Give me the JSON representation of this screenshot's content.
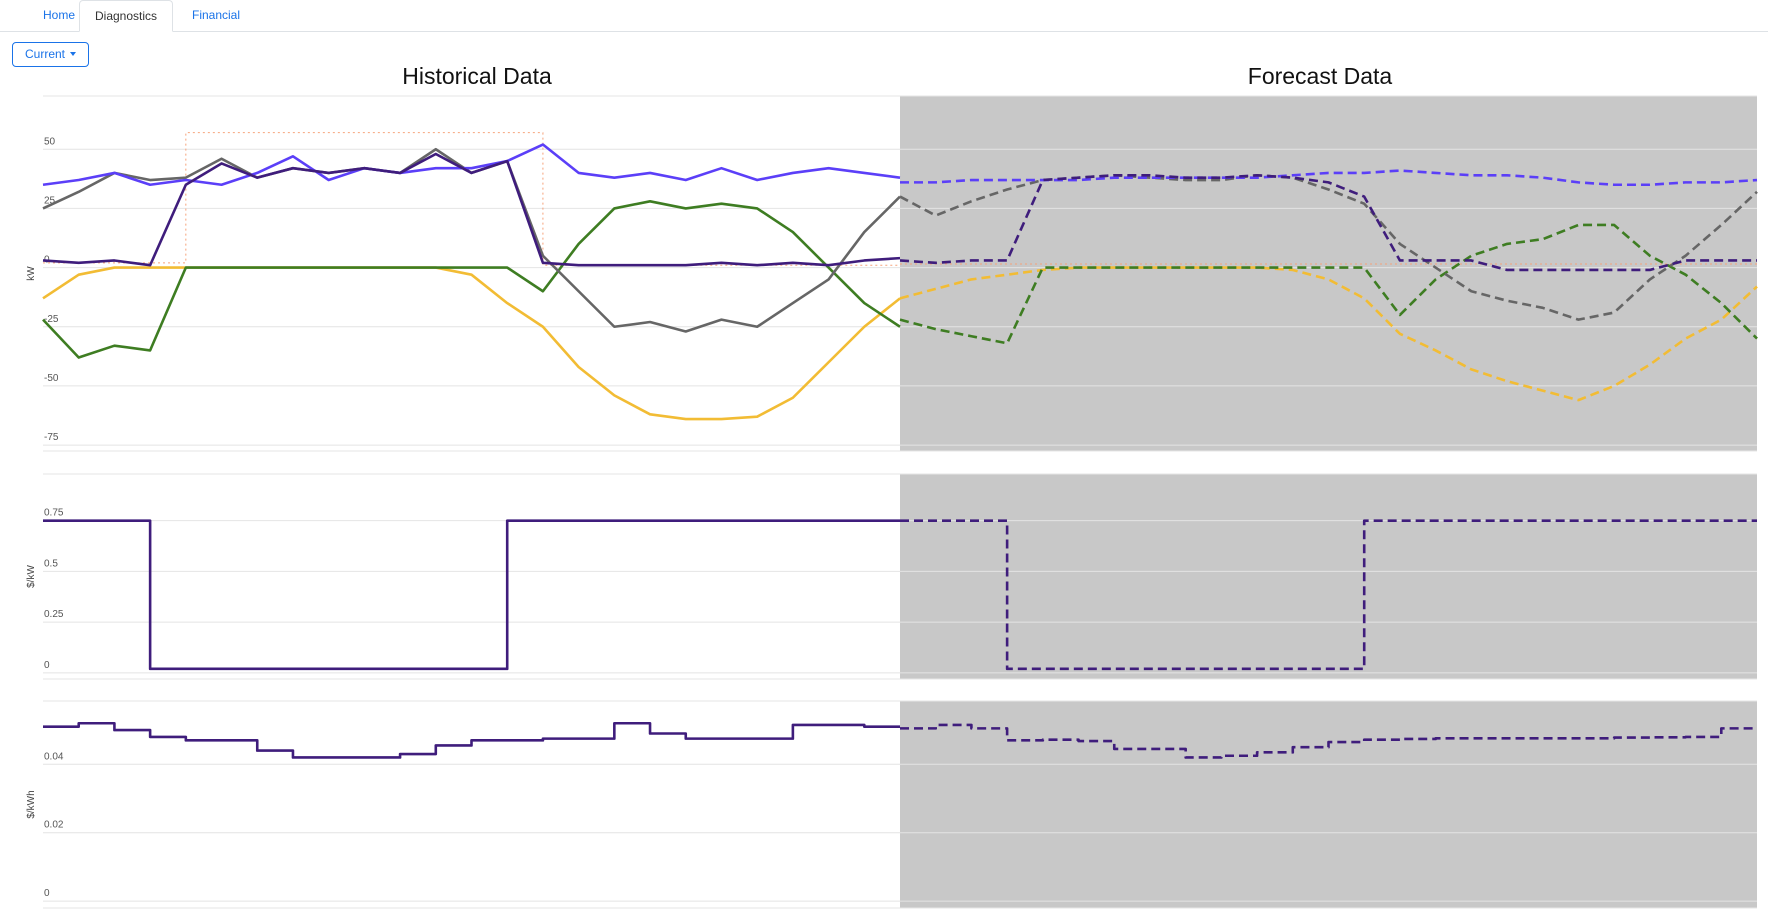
{
  "tabs": [
    "Home",
    "Diagnostics",
    "Financial"
  ],
  "button": "Current",
  "panel_titles": [
    "Historical Data",
    "Forecast Data"
  ],
  "chart_data": [
    {
      "type": "line",
      "y_label": "kW",
      "ylim": [
        -77.5,
        72.5
      ],
      "yticks": [
        -75,
        -50,
        -25,
        0,
        25,
        50
      ],
      "grid": true,
      "categories": [
        null,
        null,
        null,
        null,
        null,
        null,
        null,
        null,
        null,
        null,
        null,
        null,
        null,
        null,
        null,
        null,
        null,
        null,
        null,
        null,
        null,
        null,
        null,
        null,
        null,
        null,
        null,
        null,
        null,
        null,
        null,
        null,
        null,
        null,
        null,
        null,
        null,
        null,
        null,
        null,
        null,
        null,
        null,
        null,
        null,
        null,
        null,
        null,
        null
      ],
      "series": [
        {
          "color": "#f6a27a",
          "line_style": "dotted",
          "step": true,
          "values": [
            2,
            2,
            2,
            2,
            57,
            57,
            57,
            57,
            57,
            57,
            57,
            57,
            57,
            57,
            1,
            1,
            1,
            1,
            1,
            1,
            1,
            1,
            1,
            1,
            1,
            null,
            null,
            null,
            null,
            null,
            null,
            null,
            null,
            null,
            null,
            null,
            null,
            null,
            null,
            null,
            null,
            null,
            null,
            null,
            null,
            null,
            null,
            null,
            null
          ]
        },
        {
          "color": "#f6a27a",
          "line_style": "dotted",
          "step": true,
          "values": [
            null,
            null,
            null,
            null,
            null,
            null,
            null,
            null,
            null,
            null,
            null,
            null,
            null,
            null,
            null,
            null,
            null,
            null,
            null,
            null,
            null,
            null,
            null,
            null,
            1.5,
            1.5,
            1.5,
            1.5,
            1.5,
            1.5,
            1.5,
            1.5,
            1.5,
            1.5,
            1.5,
            1.5,
            1.5,
            1.5,
            1.5,
            1.5,
            1.5,
            1.5,
            1.5,
            1.5,
            1.5,
            1.5,
            1.5,
            1.5,
            1.5
          ]
        },
        {
          "color": "#f2bc34",
          "line_style": "solid",
          "values": [
            -13,
            -3,
            0,
            0,
            0,
            0,
            0,
            0,
            0,
            0,
            0,
            0,
            -3,
            -15,
            -25,
            -42,
            -54,
            -62,
            -64,
            -64,
            -63,
            -55,
            -40,
            -25,
            -13,
            null,
            null,
            null,
            null,
            null,
            null,
            null,
            null,
            null,
            null,
            null,
            null,
            null,
            null,
            null,
            null,
            null,
            null,
            null,
            null,
            null,
            null,
            null,
            null
          ]
        },
        {
          "color": "#f2bc34",
          "line_style": "dashed",
          "values": [
            null,
            null,
            null,
            null,
            null,
            null,
            null,
            null,
            null,
            null,
            null,
            null,
            null,
            null,
            null,
            null,
            null,
            null,
            null,
            null,
            null,
            null,
            null,
            null,
            -13,
            -9,
            -5,
            -3,
            -1,
            0,
            0,
            0,
            0,
            0,
            0,
            -1,
            -5,
            -13,
            -28,
            -35,
            -43,
            -48,
            -52,
            -56,
            -50,
            -41,
            -30,
            -22,
            -8
          ]
        },
        {
          "color": "#3e7d22",
          "line_style": "solid",
          "values": [
            -22,
            -38,
            -33,
            -35,
            0,
            0,
            0,
            0,
            0,
            0,
            0,
            0,
            0,
            0,
            -10,
            10,
            25,
            28,
            25,
            27,
            25,
            15,
            0,
            -15,
            -25,
            null,
            null,
            null,
            null,
            null,
            null,
            null,
            null,
            null,
            null,
            null,
            null,
            null,
            null,
            null,
            null,
            null,
            null,
            null,
            null,
            null,
            null,
            null,
            null
          ]
        },
        {
          "color": "#3e7d22",
          "line_style": "dashed",
          "values": [
            null,
            null,
            null,
            null,
            null,
            null,
            null,
            null,
            null,
            null,
            null,
            null,
            null,
            null,
            null,
            null,
            null,
            null,
            null,
            null,
            null,
            null,
            null,
            null,
            -22,
            -26,
            -29,
            -32,
            0,
            0,
            0,
            0,
            0,
            0,
            0,
            0,
            0,
            0,
            -20,
            -5,
            5,
            10,
            12,
            18,
            18,
            5,
            -3,
            -15,
            -30
          ]
        },
        {
          "color": "#666666",
          "line_style": "solid",
          "values": [
            25,
            32,
            40,
            37,
            38,
            46,
            38,
            42,
            40,
            42,
            40,
            50,
            40,
            45,
            5,
            -10,
            -25,
            -23,
            -27,
            -22,
            -25,
            -15,
            -5,
            15,
            30,
            null,
            null,
            null,
            null,
            null,
            null,
            null,
            null,
            null,
            null,
            null,
            null,
            null,
            null,
            null,
            null,
            null,
            null,
            null,
            null,
            null,
            null,
            null,
            null
          ]
        },
        {
          "color": "#666666",
          "line_style": "dashed",
          "values": [
            null,
            null,
            null,
            null,
            null,
            null,
            null,
            null,
            null,
            null,
            null,
            null,
            null,
            null,
            null,
            null,
            null,
            null,
            null,
            null,
            null,
            null,
            null,
            null,
            30,
            22,
            28,
            33,
            37,
            38,
            39,
            38,
            37,
            37,
            39,
            38,
            33,
            27,
            10,
            0,
            -10,
            -14,
            -17,
            -22,
            -19,
            -5,
            5,
            18,
            32
          ]
        },
        {
          "color": "#5b3ff8",
          "line_style": "solid",
          "values": [
            35,
            37,
            40,
            35,
            37,
            35,
            40,
            47,
            37,
            42,
            40,
            42,
            42,
            45,
            52,
            40,
            38,
            40,
            37,
            42,
            37,
            40,
            42,
            40,
            38,
            null,
            null,
            null,
            null,
            null,
            null,
            null,
            null,
            null,
            null,
            null,
            null,
            null,
            null,
            null,
            null,
            null,
            null,
            null,
            null,
            null,
            null,
            null,
            null
          ]
        },
        {
          "color": "#5b3ff8",
          "line_style": "dashed",
          "values": [
            null,
            null,
            null,
            null,
            null,
            null,
            null,
            null,
            null,
            null,
            null,
            null,
            null,
            null,
            null,
            null,
            null,
            null,
            null,
            null,
            null,
            null,
            null,
            null,
            36,
            36,
            37,
            37,
            37,
            37,
            38,
            38,
            38,
            38,
            38,
            39,
            40,
            40,
            41,
            40,
            39,
            39,
            38,
            36,
            35,
            35,
            36,
            36,
            37
          ]
        },
        {
          "color": "#3f1d7c",
          "line_style": "solid",
          "values": [
            3,
            2,
            3,
            1,
            35,
            44,
            38,
            42,
            40,
            42,
            40,
            48,
            40,
            45,
            2,
            1,
            1,
            1,
            1,
            2,
            1,
            2,
            1,
            3,
            4,
            null,
            null,
            null,
            null,
            null,
            null,
            null,
            null,
            null,
            null,
            null,
            null,
            null,
            null,
            null,
            null,
            null,
            null,
            null,
            null,
            null,
            null,
            null,
            null
          ]
        },
        {
          "color": "#3f1d7c",
          "line_style": "dashed",
          "values": [
            null,
            null,
            null,
            null,
            null,
            null,
            null,
            null,
            null,
            null,
            null,
            null,
            null,
            null,
            null,
            null,
            null,
            null,
            null,
            null,
            null,
            null,
            null,
            null,
            3,
            2,
            3,
            3,
            37,
            38,
            39,
            39,
            38,
            38,
            39,
            38,
            36,
            30,
            3,
            3,
            3,
            -1,
            -1,
            -1,
            -1,
            -1,
            3,
            3,
            3
          ]
        }
      ]
    },
    {
      "type": "line",
      "y_label": "$/kW",
      "ylim": [
        -0.03,
        0.98
      ],
      "yticks": [
        0,
        0.25,
        0.5,
        0.75
      ],
      "grid": true,
      "categories": [
        null,
        null,
        null,
        null,
        null,
        null,
        null,
        null,
        null,
        null,
        null,
        null,
        null,
        null,
        null,
        null,
        null,
        null,
        null,
        null,
        null,
        null,
        null,
        null,
        null,
        null,
        null,
        null,
        null,
        null,
        null,
        null,
        null,
        null,
        null,
        null,
        null,
        null,
        null,
        null,
        null,
        null,
        null,
        null,
        null,
        null,
        null,
        null,
        null
      ],
      "series": [
        {
          "color": "#3f1d7c",
          "line_style": "solid",
          "step": true,
          "values": [
            0.75,
            0.75,
            0.75,
            0.02,
            0.02,
            0.02,
            0.02,
            0.02,
            0.02,
            0.02,
            0.02,
            0.02,
            0.02,
            0.75,
            0.75,
            0.75,
            0.75,
            0.75,
            0.75,
            0.75,
            0.75,
            0.75,
            0.75,
            0.75,
            0.75,
            null,
            null,
            null,
            null,
            null,
            null,
            null,
            null,
            null,
            null,
            null,
            null,
            null,
            null,
            null,
            null,
            null,
            null,
            null,
            null,
            null,
            null,
            null,
            null
          ]
        },
        {
          "color": "#3f1d7c",
          "line_style": "dashed",
          "step": true,
          "values": [
            null,
            null,
            null,
            null,
            null,
            null,
            null,
            null,
            null,
            null,
            null,
            null,
            null,
            null,
            null,
            null,
            null,
            null,
            null,
            null,
            null,
            null,
            null,
            null,
            0.75,
            0.75,
            0.75,
            0.02,
            0.02,
            0.02,
            0.02,
            0.02,
            0.02,
            0.02,
            0.02,
            0.02,
            0.02,
            0.75,
            0.75,
            0.75,
            0.75,
            0.75,
            0.75,
            0.75,
            0.75,
            0.75,
            0.75,
            0.75,
            0.75
          ]
        }
      ]
    },
    {
      "type": "line",
      "y_label": "$/kWh",
      "ylim": [
        -0.002,
        0.0585
      ],
      "yticks": [
        0,
        0.02,
        0.04
      ],
      "grid": true,
      "categories": [
        null,
        null,
        null,
        null,
        null,
        null,
        null,
        null,
        null,
        null,
        null,
        null,
        null,
        null,
        null,
        null,
        null,
        null,
        null,
        null,
        null,
        null,
        null,
        null,
        null,
        null,
        null,
        null,
        null,
        null,
        null,
        null,
        null,
        null,
        null,
        null,
        null,
        null,
        null,
        null,
        null,
        null,
        null,
        null,
        null,
        null,
        null,
        null,
        null
      ],
      "series": [
        {
          "color": "#3f1d7c",
          "line_style": "solid",
          "step": true,
          "values": [
            0.051,
            0.052,
            0.05,
            0.048,
            0.047,
            0.047,
            0.044,
            0.042,
            0.042,
            0.042,
            0.043,
            0.0455,
            0.047,
            0.047,
            0.0475,
            0.0475,
            0.052,
            0.049,
            0.0475,
            0.0475,
            0.0475,
            0.0515,
            0.0515,
            0.051,
            0.051,
            null,
            null,
            null,
            null,
            null,
            null,
            null,
            null,
            null,
            null,
            null,
            null,
            null,
            null,
            null,
            null,
            null,
            null,
            null,
            null,
            null,
            null,
            null,
            null
          ]
        },
        {
          "color": "#3f1d7c",
          "line_style": "dashed",
          "step": true,
          "values": [
            null,
            null,
            null,
            null,
            null,
            null,
            null,
            null,
            null,
            null,
            null,
            null,
            null,
            null,
            null,
            null,
            null,
            null,
            null,
            null,
            null,
            null,
            null,
            null,
            0.0505,
            0.0515,
            0.0505,
            0.047,
            0.0472,
            0.0468,
            0.0445,
            0.0445,
            0.042,
            0.0425,
            0.0435,
            0.045,
            0.0465,
            0.0472,
            0.0474,
            0.0476,
            0.0476,
            0.0476,
            0.0476,
            0.0476,
            0.0478,
            0.0479,
            0.048,
            0.0505,
            0.0505
          ]
        }
      ]
    }
  ]
}
